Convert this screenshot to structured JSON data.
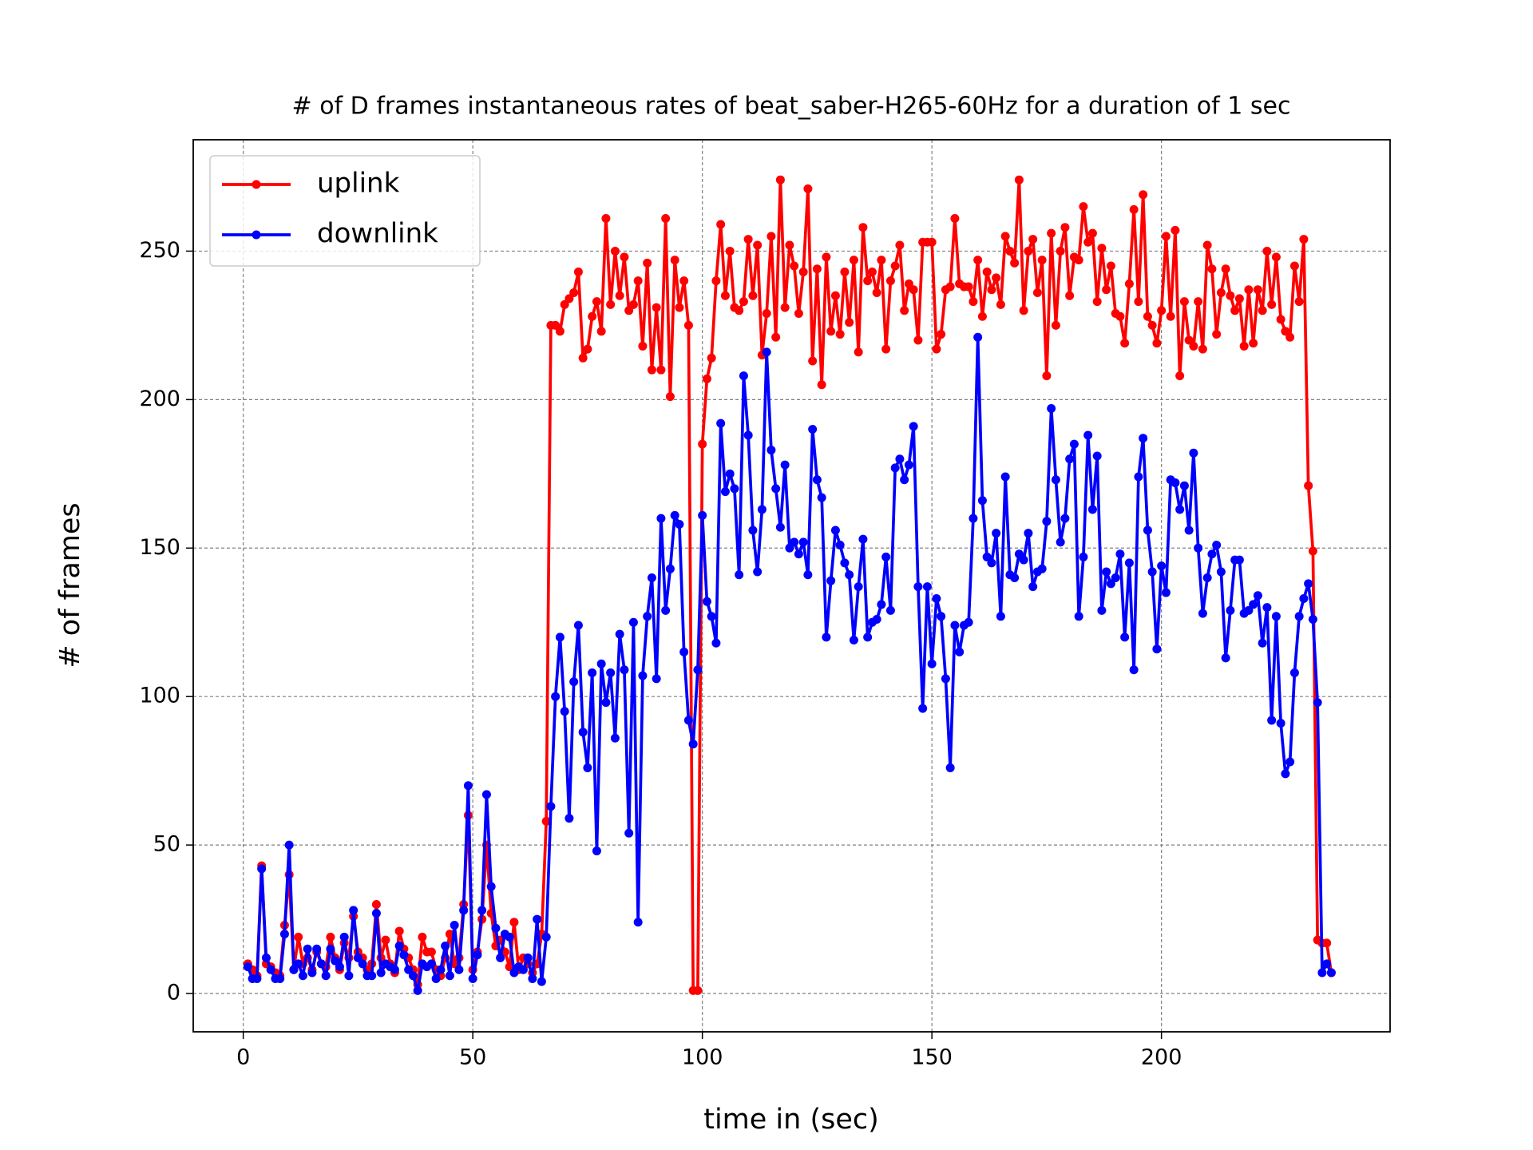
{
  "chart_data": {
    "type": "line",
    "title": "# of D frames instantaneous rates of beat_saber-H265-60Hz for a duration of 1 sec",
    "x_label": "time in (sec)",
    "y_label": "# of frames",
    "xlim": [
      -10.9,
      249.8
    ],
    "ylim": [
      -12.9,
      287.5
    ],
    "xticks": [
      0,
      50,
      100,
      150,
      200
    ],
    "yticks": [
      0,
      50,
      100,
      150,
      200,
      250
    ],
    "grid": true,
    "legend": "upper left",
    "x": [
      1,
      2,
      3,
      4,
      5,
      6,
      7,
      8,
      9,
      10,
      11,
      12,
      13,
      14,
      15,
      16,
      17,
      18,
      19,
      20,
      21,
      22,
      23,
      24,
      25,
      26,
      27,
      28,
      29,
      30,
      31,
      32,
      33,
      34,
      35,
      36,
      37,
      38,
      39,
      40,
      41,
      42,
      43,
      44,
      45,
      46,
      47,
      48,
      49,
      50,
      51,
      52,
      53,
      54,
      55,
      56,
      57,
      58,
      59,
      60,
      61,
      62,
      63,
      64,
      65,
      66,
      67,
      68,
      69,
      70,
      71,
      72,
      73,
      74,
      75,
      76,
      77,
      78,
      79,
      80,
      81,
      82,
      83,
      84,
      85,
      86,
      87,
      88,
      89,
      90,
      91,
      92,
      93,
      94,
      95,
      96,
      97,
      98,
      99,
      100,
      101,
      102,
      103,
      104,
      105,
      106,
      107,
      108,
      109,
      110,
      111,
      112,
      113,
      114,
      115,
      116,
      117,
      118,
      119,
      120,
      121,
      122,
      123,
      124,
      125,
      126,
      127,
      128,
      129,
      130,
      131,
      132,
      133,
      134,
      135,
      136,
      137,
      138,
      139,
      140,
      141,
      142,
      143,
      144,
      145,
      146,
      147,
      148,
      149,
      150,
      151,
      152,
      153,
      154,
      155,
      156,
      157,
      158,
      159,
      160,
      161,
      162,
      163,
      164,
      165,
      166,
      167,
      168,
      169,
      170,
      171,
      172,
      173,
      174,
      175,
      176,
      177,
      178,
      179,
      180,
      181,
      182,
      183,
      184,
      185,
      186,
      187,
      188,
      189,
      190,
      191,
      192,
      193,
      194,
      195,
      196,
      197,
      198,
      199,
      200,
      201,
      202,
      203,
      204,
      205,
      206,
      207,
      208,
      209,
      210,
      211,
      212,
      213,
      214,
      215,
      216,
      217,
      218,
      219,
      220,
      221,
      222,
      223,
      224,
      225,
      226,
      227,
      228,
      229,
      230,
      231,
      232,
      233,
      234,
      235,
      236,
      237
    ],
    "series": [
      {
        "name": "uplink",
        "color": "#ff0000",
        "values": [
          10,
          8,
          6,
          43,
          10,
          9,
          7,
          6,
          23,
          40,
          8,
          19,
          10,
          12,
          8,
          14,
          10,
          9,
          19,
          12,
          8,
          17,
          12,
          26,
          14,
          12,
          8,
          10,
          30,
          12,
          18,
          10,
          7,
          21,
          15,
          12,
          8,
          3,
          19,
          14,
          14,
          8,
          6,
          12,
          20,
          10,
          12,
          30,
          60,
          8,
          14,
          25,
          50,
          27,
          16,
          18,
          14,
          9,
          24,
          8,
          12,
          10,
          7,
          10,
          20,
          58,
          225,
          225,
          223,
          232,
          234,
          236,
          243,
          214,
          217,
          228,
          233,
          223,
          261,
          232,
          250,
          235,
          248,
          230,
          232,
          240,
          218,
          246,
          210,
          231,
          210,
          261,
          201,
          247,
          231,
          240,
          225,
          1,
          1,
          185,
          207,
          214,
          240,
          259,
          235,
          250,
          231,
          230,
          233,
          254,
          235,
          252,
          215,
          229,
          255,
          221,
          274,
          231,
          252,
          245,
          229,
          243,
          271,
          213,
          244,
          205,
          248,
          223,
          235,
          222,
          243,
          226,
          247,
          216,
          258,
          240,
          243,
          236,
          247,
          217,
          240,
          245,
          252,
          230,
          239,
          237,
          220,
          253,
          253,
          253,
          217,
          222,
          237,
          238,
          261,
          239,
          238,
          238,
          233,
          247,
          228,
          243,
          237,
          241,
          232,
          255,
          250,
          246,
          274,
          230,
          250,
          254,
          236,
          247,
          208,
          256,
          225,
          250,
          258,
          235,
          248,
          247,
          265,
          253,
          256,
          233,
          251,
          237,
          245,
          229,
          228,
          219,
          239,
          264,
          233,
          269,
          228,
          225,
          219,
          230,
          255,
          228,
          257,
          208,
          233,
          220,
          218,
          233,
          217,
          252,
          244,
          222,
          236,
          244,
          235,
          230,
          234,
          218,
          237,
          219,
          237,
          230,
          250,
          232,
          248,
          227,
          223,
          221,
          245,
          233,
          254,
          171,
          149,
          18,
          17,
          17,
          7
        ]
      },
      {
        "name": "downlink",
        "color": "#0000ff",
        "values": [
          9,
          5,
          5,
          42,
          12,
          8,
          5,
          5,
          20,
          50,
          8,
          10,
          6,
          15,
          7,
          15,
          10,
          6,
          15,
          11,
          9,
          19,
          6,
          28,
          12,
          10,
          6,
          6,
          27,
          7,
          10,
          9,
          8,
          16,
          13,
          8,
          6,
          1,
          10,
          9,
          10,
          5,
          8,
          16,
          6,
          23,
          8,
          28,
          70,
          5,
          13,
          28,
          67,
          36,
          22,
          12,
          20,
          19,
          7,
          9,
          8,
          12,
          5,
          25,
          4,
          19,
          63,
          100,
          120,
          95,
          59,
          105,
          124,
          88,
          76,
          108,
          48,
          111,
          98,
          108,
          86,
          121,
          109,
          54,
          125,
          24,
          107,
          127,
          140,
          106,
          160,
          129,
          143,
          161,
          158,
          115,
          92,
          84,
          109,
          161,
          132,
          127,
          118,
          192,
          169,
          175,
          170,
          141,
          208,
          188,
          156,
          142,
          163,
          216,
          183,
          170,
          157,
          178,
          150,
          152,
          148,
          152,
          141,
          190,
          173,
          167,
          120,
          139,
          156,
          151,
          145,
          141,
          119,
          137,
          153,
          120,
          125,
          126,
          131,
          147,
          129,
          177,
          180,
          173,
          178,
          191,
          137,
          96,
          137,
          111,
          133,
          127,
          106,
          76,
          124,
          115,
          124,
          125,
          160,
          221,
          166,
          147,
          145,
          155,
          127,
          174,
          141,
          140,
          148,
          146,
          155,
          137,
          142,
          143,
          159,
          197,
          173,
          152,
          160,
          180,
          185,
          127,
          147,
          188,
          163,
          181,
          129,
          142,
          138,
          140,
          148,
          120,
          145,
          109,
          174,
          187,
          156,
          142,
          116,
          144,
          135,
          173,
          172,
          163,
          171,
          156,
          182,
          150,
          128,
          140,
          148,
          151,
          142,
          113,
          129,
          146,
          146,
          128,
          129,
          131,
          134,
          118,
          130,
          92,
          127,
          91,
          74,
          78,
          108,
          127,
          133,
          138,
          126,
          98,
          7,
          10,
          7
        ]
      }
    ]
  }
}
